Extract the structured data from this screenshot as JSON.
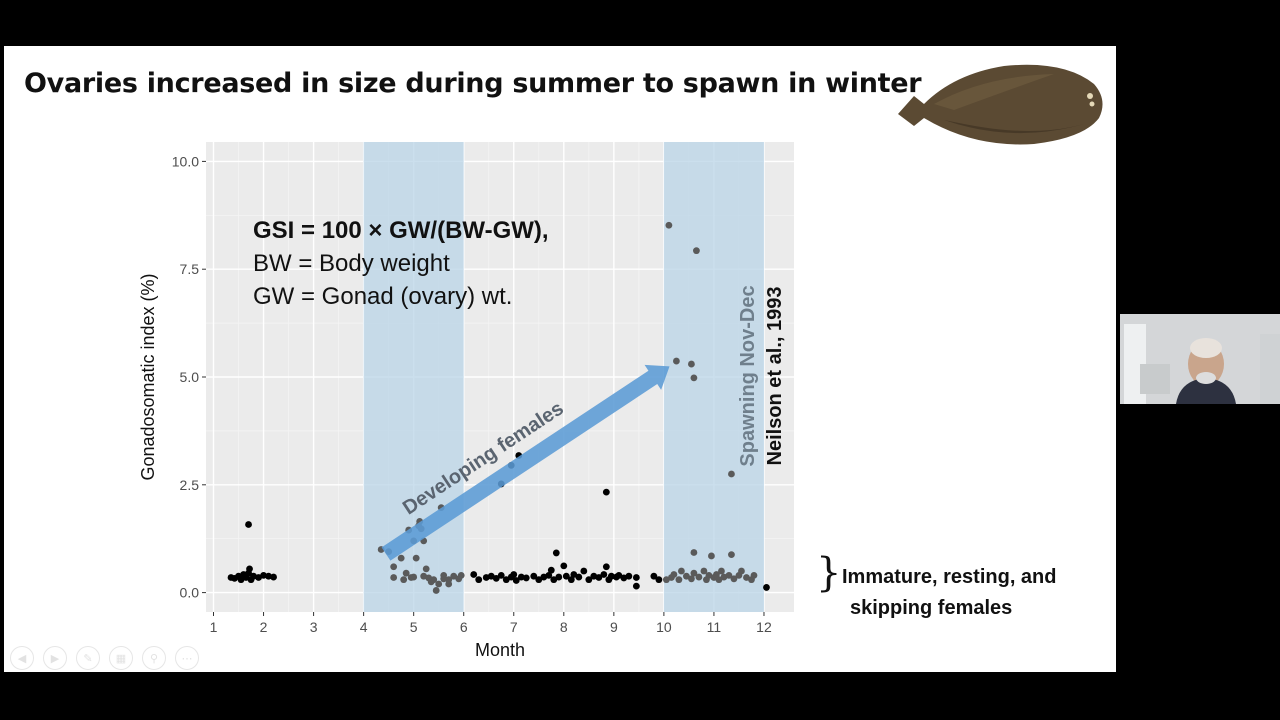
{
  "slide": {
    "title": "Ovaries increased in size during summer to spawn in winter",
    "formula_line1": "GSI = 100 × GW/(BW-GW),",
    "formula_line2": "BW = Body weight",
    "formula_line3": "GW = Gonad (ovary) wt.",
    "arrow_label": "Developing females",
    "spawning_label": "Spawning Nov-Dec",
    "citation": "Neilson et al., 1993",
    "annotation_line1": "Immature, resting, and",
    "annotation_line2": "skipping females",
    "bracket": "}"
  },
  "toolbar": {
    "icons": [
      "prev-icon",
      "next-icon",
      "pen-icon",
      "slides-icon",
      "zoom-icon",
      "more-icon"
    ]
  },
  "colors": {
    "panel_bg": "#ebebeb",
    "band": "#b7d2e6",
    "arrow": "#5b9bd5",
    "point_dark": "#000000",
    "point_grey": "#5a5a5a",
    "spawning_text": "#6f7f8c"
  },
  "chart_data": {
    "type": "scatter",
    "xlabel": "Month",
    "ylabel": "Gonadosomatic index (%)",
    "xlim": [
      0.85,
      12.6
    ],
    "ylim": [
      -0.45,
      10.45
    ],
    "x_ticks": [
      1,
      2,
      3,
      4,
      5,
      6,
      7,
      8,
      9,
      10,
      11,
      12
    ],
    "y_ticks": [
      0.0,
      2.5,
      5.0,
      7.5,
      10.0
    ],
    "y_tick_labels": [
      "0.0",
      "2.5",
      "5.0",
      "7.5",
      "10.0"
    ],
    "grid": true,
    "shaded_bands": [
      [
        4,
        6
      ],
      [
        10,
        12
      ]
    ],
    "series": [
      {
        "color": "#000000",
        "points": [
          [
            1.35,
            0.35
          ],
          [
            1.42,
            0.33
          ],
          [
            1.5,
            0.38
          ],
          [
            1.55,
            0.3
          ],
          [
            1.6,
            0.42
          ],
          [
            1.65,
            0.35
          ],
          [
            1.7,
            0.45
          ],
          [
            1.72,
            0.55
          ],
          [
            1.75,
            0.3
          ],
          [
            1.8,
            0.38
          ],
          [
            1.9,
            0.35
          ],
          [
            2.0,
            0.4
          ],
          [
            2.1,
            0.38
          ],
          [
            2.2,
            0.36
          ],
          [
            1.7,
            1.58
          ],
          [
            6.2,
            0.42
          ],
          [
            6.3,
            0.3
          ],
          [
            6.45,
            0.35
          ],
          [
            6.55,
            0.38
          ],
          [
            6.65,
            0.33
          ],
          [
            6.75,
            0.4
          ],
          [
            6.85,
            0.3
          ],
          [
            6.95,
            0.36
          ],
          [
            7.0,
            0.42
          ],
          [
            7.05,
            0.28
          ],
          [
            7.15,
            0.36
          ],
          [
            7.25,
            0.34
          ],
          [
            7.4,
            0.38
          ],
          [
            7.5,
            0.3
          ],
          [
            7.6,
            0.36
          ],
          [
            7.7,
            0.4
          ],
          [
            7.75,
            0.52
          ],
          [
            7.8,
            0.3
          ],
          [
            7.85,
            0.92
          ],
          [
            7.9,
            0.36
          ],
          [
            8.0,
            0.62
          ],
          [
            8.05,
            0.38
          ],
          [
            8.15,
            0.3
          ],
          [
            8.2,
            0.42
          ],
          [
            8.3,
            0.36
          ],
          [
            8.4,
            0.5
          ],
          [
            8.5,
            0.3
          ],
          [
            8.6,
            0.38
          ],
          [
            8.7,
            0.35
          ],
          [
            8.8,
            0.42
          ],
          [
            8.85,
            0.6
          ],
          [
            8.9,
            0.3
          ],
          [
            8.95,
            0.38
          ],
          [
            9.05,
            0.36
          ],
          [
            9.1,
            0.4
          ],
          [
            9.2,
            0.34
          ],
          [
            9.3,
            0.38
          ],
          [
            9.45,
            0.35
          ],
          [
            9.45,
            0.15
          ],
          [
            9.8,
            0.38
          ],
          [
            9.9,
            0.3
          ],
          [
            6.75,
            2.52
          ],
          [
            6.95,
            2.95
          ],
          [
            7.1,
            3.18
          ],
          [
            8.85,
            2.33
          ],
          [
            12.05,
            0.12
          ]
        ]
      },
      {
        "color": "#5a5a5a",
        "points": [
          [
            4.35,
            1.0
          ],
          [
            4.5,
            0.95
          ],
          [
            4.6,
            0.6
          ],
          [
            4.75,
            0.8
          ],
          [
            4.85,
            0.45
          ],
          [
            4.9,
            1.45
          ],
          [
            4.95,
            0.35
          ],
          [
            5.0,
            1.2
          ],
          [
            5.05,
            0.8
          ],
          [
            5.1,
            1.55
          ],
          [
            5.12,
            1.65
          ],
          [
            5.15,
            1.48
          ],
          [
            5.2,
            1.2
          ],
          [
            5.25,
            0.55
          ],
          [
            5.35,
            0.25
          ],
          [
            5.4,
            0.3
          ],
          [
            5.45,
            0.05
          ],
          [
            5.5,
            0.2
          ],
          [
            5.55,
            1.97
          ],
          [
            5.6,
            0.4
          ],
          [
            5.7,
            0.3
          ],
          [
            5.8,
            0.38
          ],
          [
            5.9,
            0.32
          ],
          [
            5.95,
            0.4
          ],
          [
            4.6,
            0.35
          ],
          [
            4.8,
            0.3
          ],
          [
            5.0,
            0.36
          ],
          [
            5.2,
            0.38
          ],
          [
            5.3,
            0.34
          ],
          [
            5.6,
            0.32
          ],
          [
            5.7,
            0.2
          ],
          [
            10.1,
            8.52
          ],
          [
            10.65,
            7.93
          ],
          [
            10.25,
            5.37
          ],
          [
            10.55,
            5.3
          ],
          [
            10.6,
            4.98
          ],
          [
            11.35,
            2.75
          ],
          [
            10.05,
            0.3
          ],
          [
            10.15,
            0.35
          ],
          [
            10.2,
            0.42
          ],
          [
            10.3,
            0.3
          ],
          [
            10.35,
            0.5
          ],
          [
            10.45,
            0.38
          ],
          [
            10.55,
            0.32
          ],
          [
            10.6,
            0.45
          ],
          [
            10.6,
            0.93
          ],
          [
            10.7,
            0.36
          ],
          [
            10.8,
            0.5
          ],
          [
            10.85,
            0.3
          ],
          [
            10.9,
            0.4
          ],
          [
            10.95,
            0.85
          ],
          [
            11.0,
            0.35
          ],
          [
            11.05,
            0.42
          ],
          [
            11.1,
            0.3
          ],
          [
            11.15,
            0.5
          ],
          [
            11.2,
            0.36
          ],
          [
            11.3,
            0.4
          ],
          [
            11.35,
            0.88
          ],
          [
            11.4,
            0.32
          ],
          [
            11.5,
            0.4
          ],
          [
            11.55,
            0.5
          ],
          [
            11.65,
            0.35
          ],
          [
            11.75,
            0.3
          ],
          [
            11.8,
            0.4
          ]
        ]
      }
    ]
  }
}
